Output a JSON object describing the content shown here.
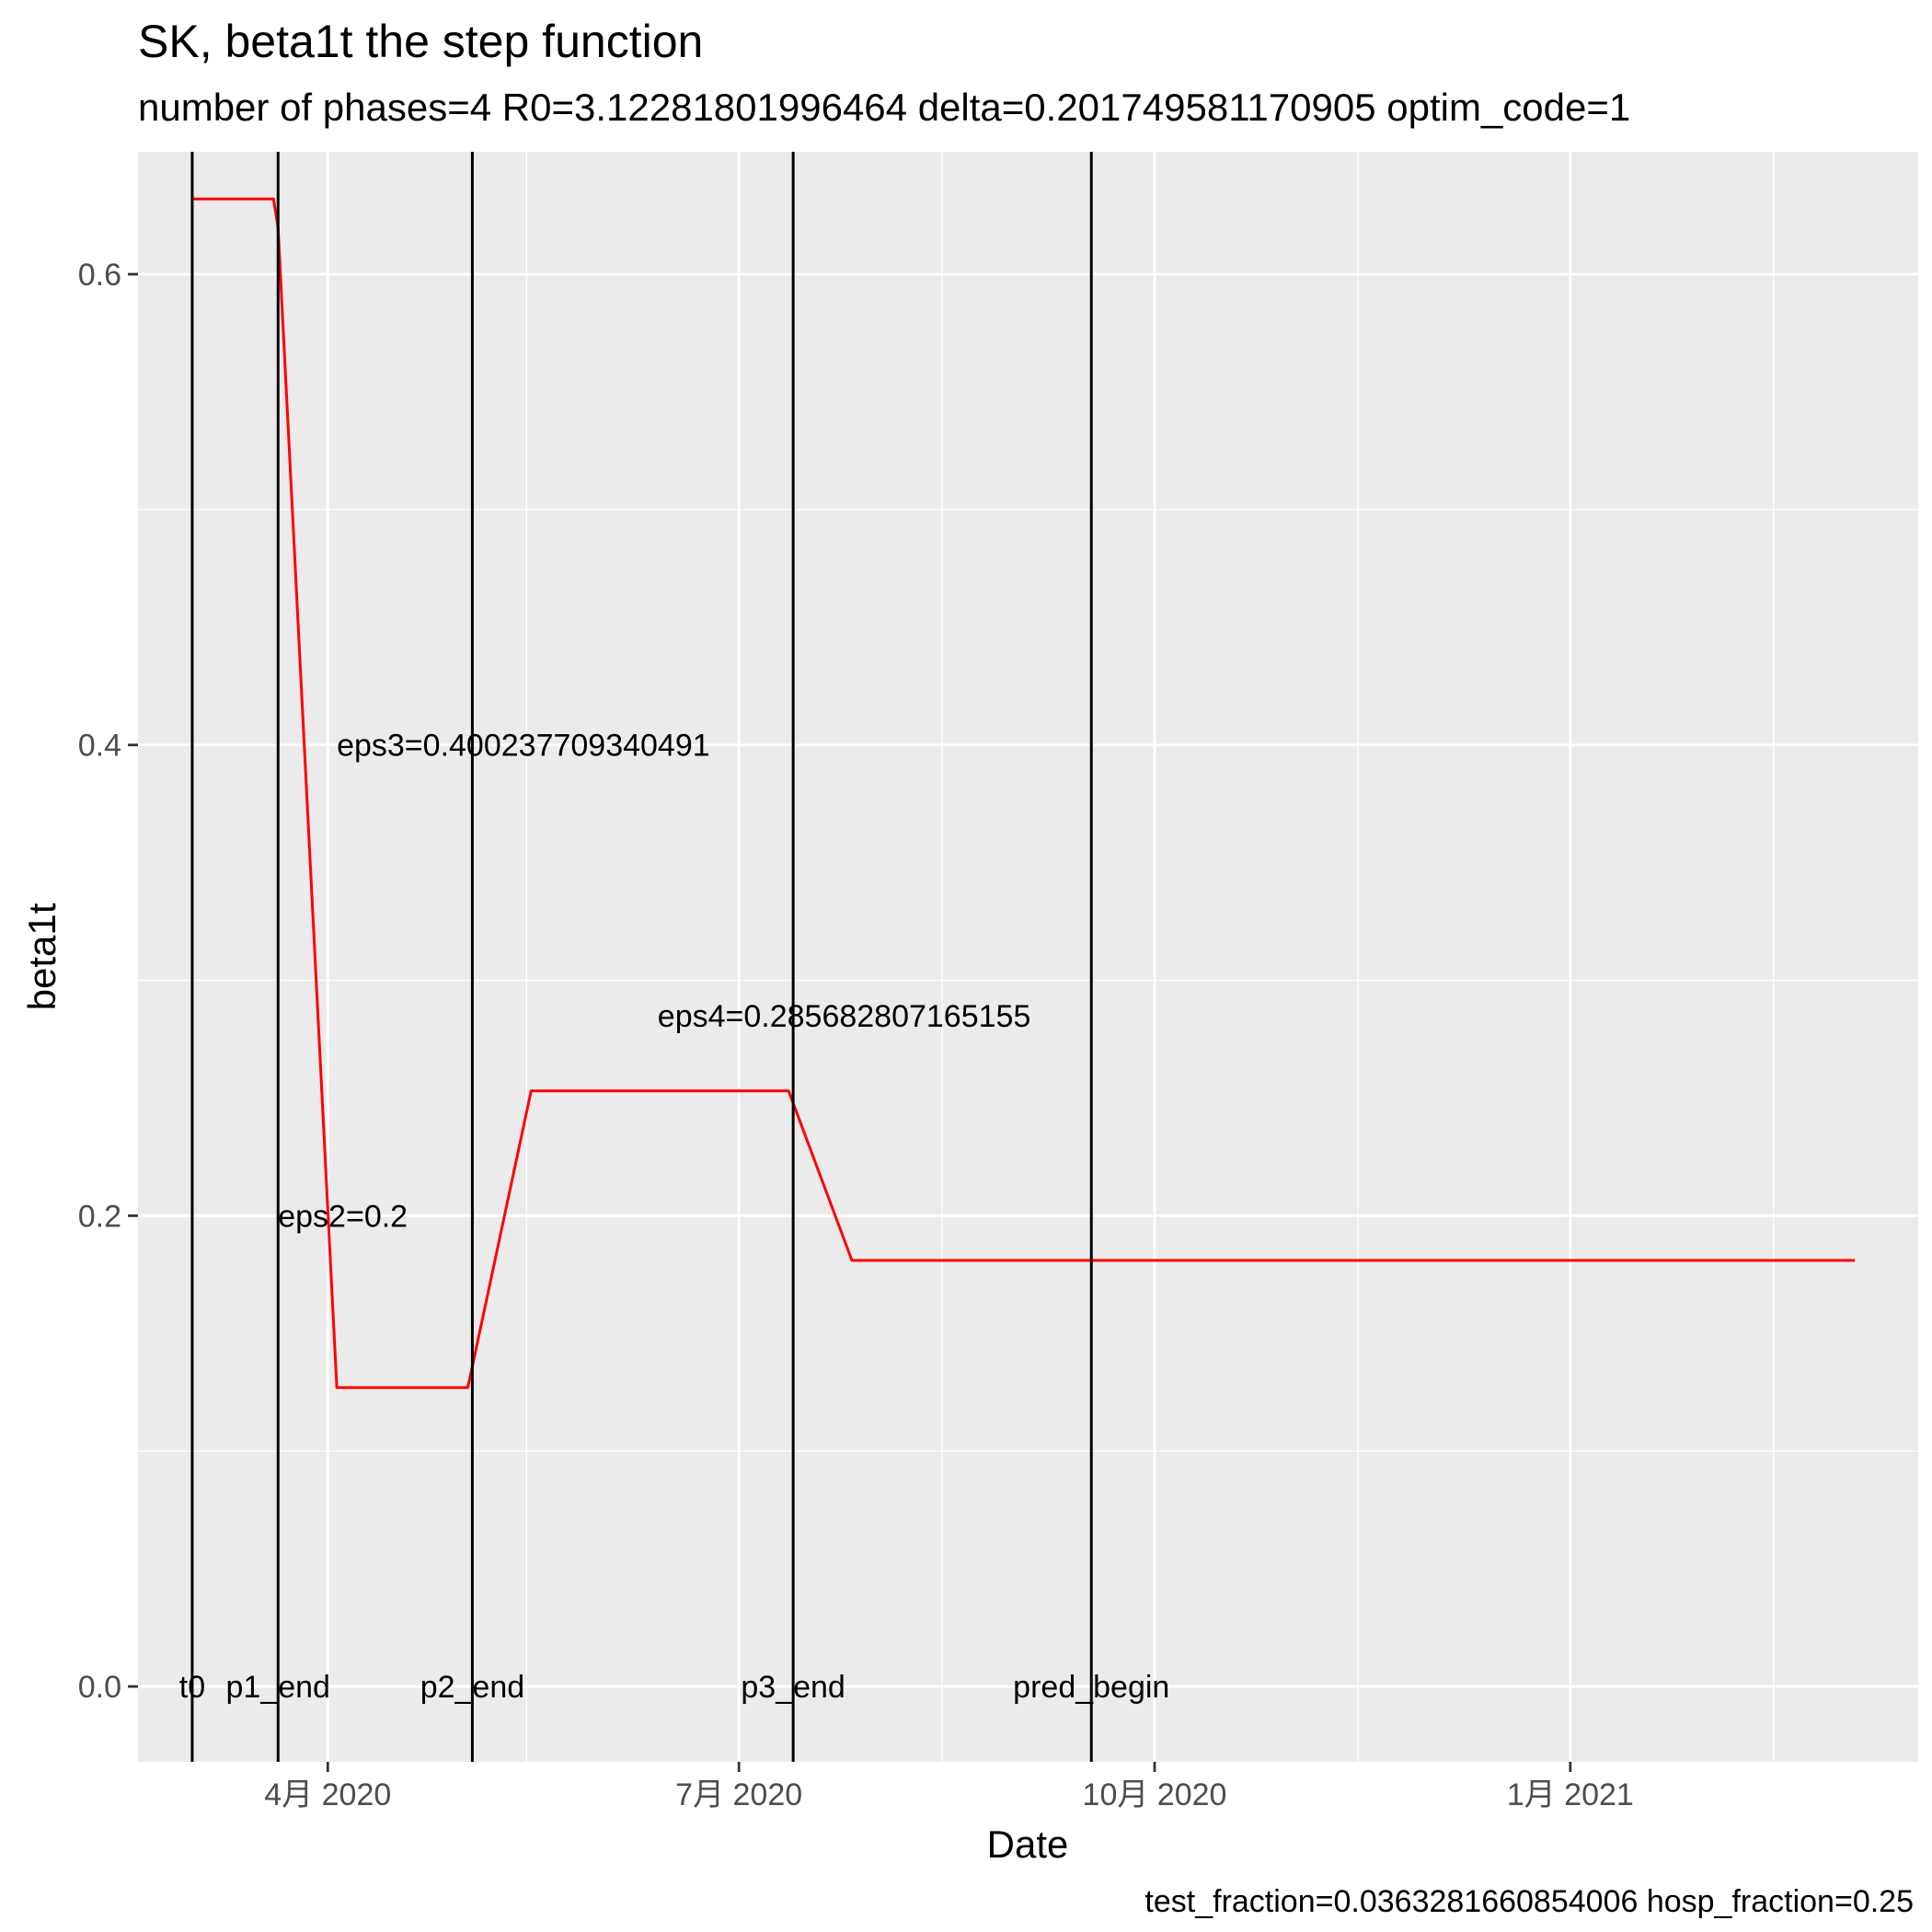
{
  "chart_data": {
    "type": "line",
    "title": "SK, beta1t the step function",
    "subtitle": "number of phases=4   R0=3.12281801996464   delta=0.201749581170905   optim_code=1",
    "caption": "test_fraction=0.0363281660854006   hosp_fraction=0.25",
    "xlabel": "Date",
    "ylabel": "beta1t",
    "x_is_date": true,
    "xlim": [
      "2020-02-19",
      "2021-03-19"
    ],
    "ylim": [
      -0.032,
      0.652
    ],
    "x_ticks": [
      {
        "date": "2020-04-01",
        "label": "4月 2020"
      },
      {
        "date": "2020-07-01",
        "label": "7月 2020"
      },
      {
        "date": "2020-10-01",
        "label": "10月 2020"
      },
      {
        "date": "2021-01-01",
        "label": "1月 2021"
      }
    ],
    "x_minor_ticks": [
      "2020-02-15",
      "2020-05-15",
      "2020-08-15",
      "2020-11-15",
      "2021-02-15"
    ],
    "y_ticks": [
      {
        "value": 0.0,
        "label": "0.0"
      },
      {
        "value": 0.2,
        "label": "0.2"
      },
      {
        "value": 0.4,
        "label": "0.4"
      },
      {
        "value": 0.6,
        "label": "0.6"
      }
    ],
    "y_minor_ticks": [
      0.1,
      0.3,
      0.5
    ],
    "grid": true,
    "legend": "none",
    "colors": {
      "line": "#ff0000",
      "vlines": "#000000",
      "panel": "#ebebeb",
      "grid": "#ffffff"
    },
    "series": [
      {
        "color": "#ff0000",
        "points": [
          {
            "x": "2020-03-02",
            "y": 0.632
          },
          {
            "x": "2020-03-20",
            "y": 0.632
          },
          {
            "x": "2020-03-21",
            "y": 0.62
          },
          {
            "x": "2020-04-03",
            "y": 0.127
          },
          {
            "x": "2020-05-02",
            "y": 0.127
          },
          {
            "x": "2020-05-16",
            "y": 0.253
          },
          {
            "x": "2020-07-12",
            "y": 0.253
          },
          {
            "x": "2020-07-26",
            "y": 0.181
          },
          {
            "x": "2021-03-05",
            "y": 0.181
          }
        ]
      }
    ],
    "vlines": [
      {
        "date": "2020-03-02",
        "label": "t0"
      },
      {
        "date": "2020-03-21",
        "label": "p1_end"
      },
      {
        "date": "2020-05-03",
        "label": "p2_end"
      },
      {
        "date": "2020-07-13",
        "label": "p3_end"
      },
      {
        "date": "2020-09-17",
        "label": "pred_begin"
      }
    ],
    "annotations": [
      {
        "x": "2020-04-03",
        "y": 0.4,
        "text": "eps3=0.400237709340491"
      },
      {
        "x": "2020-06-13",
        "y": 0.285,
        "text": "eps4=0.285682807165155"
      },
      {
        "x": "2020-03-21",
        "y": 0.2,
        "text": "eps2=0.2"
      }
    ]
  }
}
